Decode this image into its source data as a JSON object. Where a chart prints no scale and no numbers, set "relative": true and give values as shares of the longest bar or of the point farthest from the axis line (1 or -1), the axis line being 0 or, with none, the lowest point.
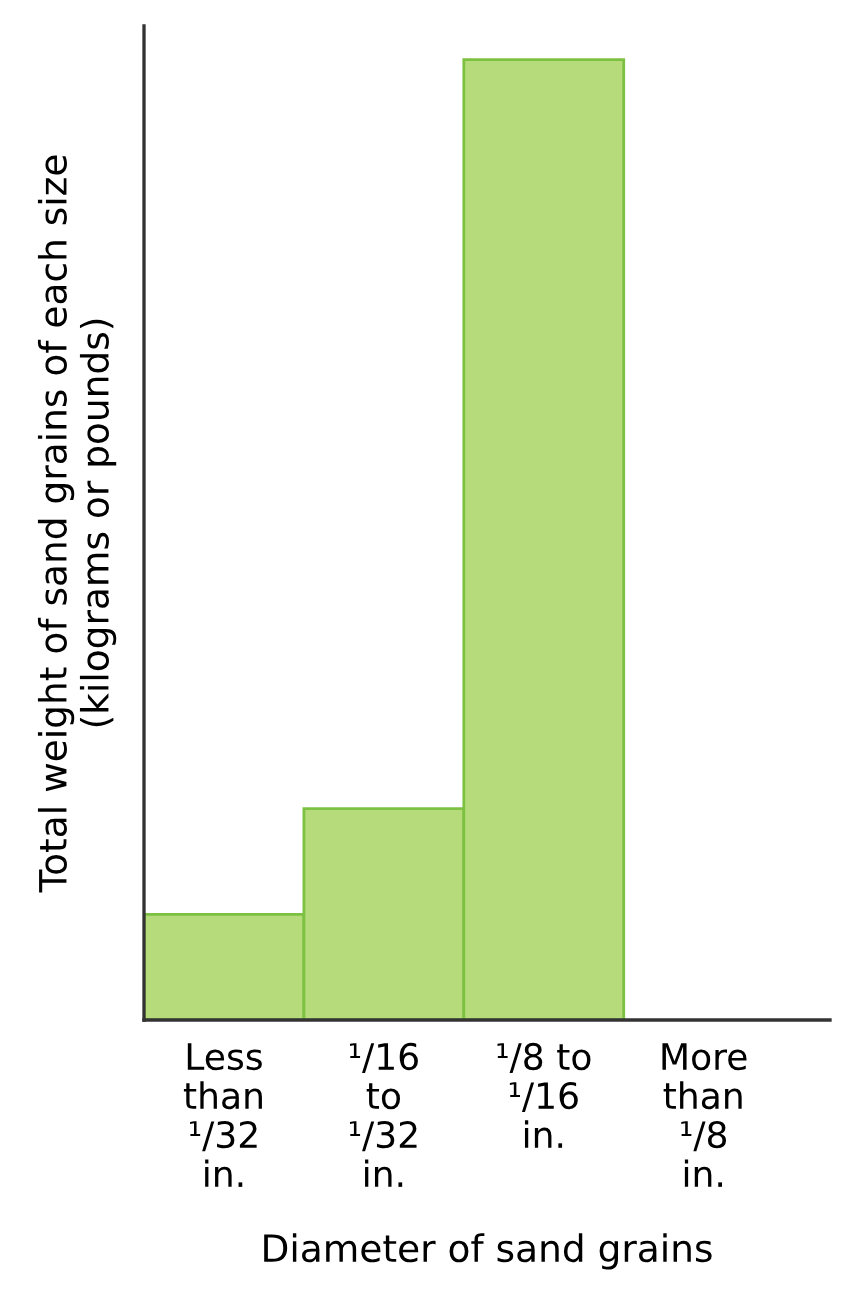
{
  "chart_data": {
    "type": "bar",
    "relative": true,
    "xlabel": "Diameter of sand grains",
    "ylabel": "Total weight of sand grains of each size\n(kilograms or pounds)",
    "categories": [
      "Less\nthan\n¹/32\nin.",
      "¹/16\nto\n¹/32\nin.",
      "¹/8 to\n¹/16\nin.",
      "More\nthan\n¹/8\nin."
    ],
    "values": [
      0.11,
      0.22,
      1,
      0
    ],
    "color": "#b5db7a",
    "grid": false,
    "legend": false
  }
}
